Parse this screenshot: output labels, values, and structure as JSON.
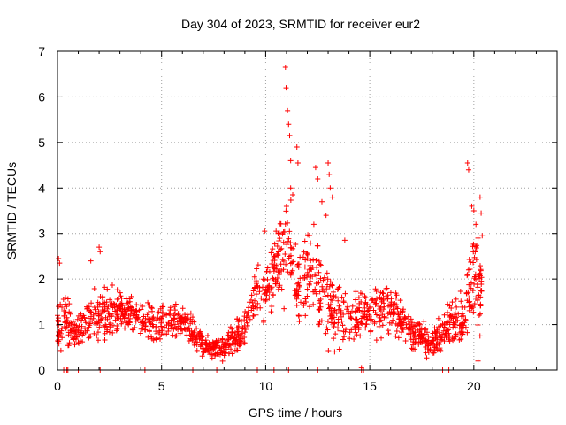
{
  "chart_data": {
    "type": "scatter",
    "title": "Day 304 of 2023, SRMTID for receiver eur2",
    "xlabel": "GPS time / hours",
    "ylabel": "SRMTID / TECUs",
    "xlim": [
      0,
      24
    ],
    "ylim": [
      0,
      7
    ],
    "x_ticks": [
      0,
      5,
      10,
      15,
      20
    ],
    "y_ticks": [
      0,
      1,
      2,
      3,
      4,
      5,
      6,
      7
    ],
    "grid": true,
    "marker": "+",
    "marker_color": "#ff0000",
    "series": [
      {
        "name": "SRMTID",
        "trend": [
          {
            "t": 0.0,
            "base": 0.9,
            "spread": 0.6
          },
          {
            "t": 0.4,
            "base": 1.2,
            "spread": 0.9
          },
          {
            "t": 0.8,
            "base": 0.8,
            "spread": 0.5
          },
          {
            "t": 1.5,
            "base": 1.1,
            "spread": 0.6
          },
          {
            "t": 2.0,
            "base": 1.2,
            "spread": 0.9
          },
          {
            "t": 3.0,
            "base": 1.3,
            "spread": 0.6
          },
          {
            "t": 4.0,
            "base": 1.1,
            "spread": 0.6
          },
          {
            "t": 5.0,
            "base": 1.0,
            "spread": 0.6
          },
          {
            "t": 6.0,
            "base": 1.1,
            "spread": 0.5
          },
          {
            "t": 6.5,
            "base": 0.9,
            "spread": 0.6
          },
          {
            "t": 7.0,
            "base": 0.5,
            "spread": 0.3
          },
          {
            "t": 8.0,
            "base": 0.5,
            "spread": 0.35
          },
          {
            "t": 9.0,
            "base": 0.9,
            "spread": 0.5
          },
          {
            "t": 9.6,
            "base": 1.8,
            "spread": 0.8
          },
          {
            "t": 10.0,
            "base": 1.6,
            "spread": 1.0
          },
          {
            "t": 10.6,
            "base": 2.4,
            "spread": 1.2
          },
          {
            "t": 11.0,
            "base": 2.9,
            "spread": 1.8
          },
          {
            "t": 11.5,
            "base": 1.8,
            "spread": 1.2
          },
          {
            "t": 12.3,
            "base": 2.2,
            "spread": 1.4
          },
          {
            "t": 13.0,
            "base": 1.4,
            "spread": 1.2
          },
          {
            "t": 14.0,
            "base": 1.0,
            "spread": 0.7
          },
          {
            "t": 15.0,
            "base": 1.3,
            "spread": 0.8
          },
          {
            "t": 16.0,
            "base": 1.4,
            "spread": 0.8
          },
          {
            "t": 17.0,
            "base": 0.8,
            "spread": 0.5
          },
          {
            "t": 18.0,
            "base": 0.6,
            "spread": 0.5
          },
          {
            "t": 18.8,
            "base": 0.9,
            "spread": 0.7
          },
          {
            "t": 19.5,
            "base": 1.2,
            "spread": 0.8
          },
          {
            "t": 20.0,
            "base": 2.2,
            "spread": 1.6
          },
          {
            "t": 20.4,
            "base": 1.5,
            "spread": 1.2
          }
        ],
        "peaks": [
          {
            "x": 0.05,
            "y": 2.45
          },
          {
            "x": 0.1,
            "y": 2.35
          },
          {
            "x": 0.3,
            "y": 0.0
          },
          {
            "x": 1.6,
            "y": 2.4
          },
          {
            "x": 2.0,
            "y": 2.7
          },
          {
            "x": 2.05,
            "y": 2.6
          },
          {
            "x": 10.95,
            "y": 6.65
          },
          {
            "x": 10.98,
            "y": 6.2
          },
          {
            "x": 11.05,
            "y": 5.7
          },
          {
            "x": 11.1,
            "y": 5.4
          },
          {
            "x": 11.15,
            "y": 5.15
          },
          {
            "x": 11.2,
            "y": 4.6
          },
          {
            "x": 11.5,
            "y": 4.9
          },
          {
            "x": 11.55,
            "y": 4.55
          },
          {
            "x": 11.2,
            "y": 4.0
          },
          {
            "x": 11.3,
            "y": 3.85
          },
          {
            "x": 12.4,
            "y": 4.45
          },
          {
            "x": 12.5,
            "y": 4.2
          },
          {
            "x": 12.7,
            "y": 3.7
          },
          {
            "x": 13.0,
            "y": 4.55
          },
          {
            "x": 13.05,
            "y": 4.3
          },
          {
            "x": 13.1,
            "y": 4.0
          },
          {
            "x": 13.2,
            "y": 3.8
          },
          {
            "x": 12.9,
            "y": 3.4
          },
          {
            "x": 13.8,
            "y": 2.85
          },
          {
            "x": 14.6,
            "y": 0.05
          },
          {
            "x": 19.7,
            "y": 4.55
          },
          {
            "x": 19.75,
            "y": 4.4
          },
          {
            "x": 19.9,
            "y": 3.6
          },
          {
            "x": 20.0,
            "y": 3.5
          },
          {
            "x": 20.1,
            "y": 3.2
          },
          {
            "x": 20.3,
            "y": 3.8
          },
          {
            "x": 20.35,
            "y": 3.45
          },
          {
            "x": 20.2,
            "y": 2.9
          },
          {
            "x": 20.4,
            "y": 2.95
          },
          {
            "x": 20.2,
            "y": 0.2
          },
          {
            "x": 9.95,
            "y": 3.05
          },
          {
            "x": 10.5,
            "y": 3.05
          },
          {
            "x": 10.6,
            "y": 3.0
          }
        ]
      }
    ]
  }
}
